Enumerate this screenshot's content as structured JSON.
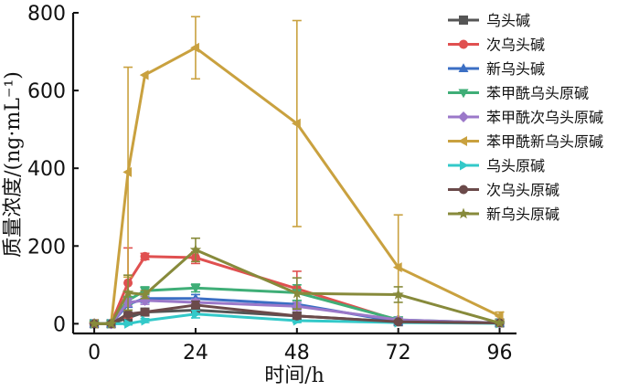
{
  "chart_data": {
    "type": "line",
    "xlabel": "时间/h",
    "ylabel": "质量浓度/(ng·mL⁻¹)",
    "xlim": [
      -5,
      100
    ],
    "ylim": [
      -25,
      800
    ],
    "xticks": [
      0,
      24,
      48,
      72,
      96
    ],
    "yticks": [
      0,
      200,
      400,
      600,
      800
    ],
    "grid": false,
    "legend_position": "top-right",
    "series": [
      {
        "name": "乌头碱",
        "marker": "square",
        "color": "#555555",
        "x": [
          0,
          4,
          8,
          12,
          24,
          48,
          72,
          96
        ],
        "y": [
          0,
          0,
          15,
          30,
          35,
          20,
          5,
          2
        ],
        "err": [
          0,
          0,
          5,
          8,
          10,
          8,
          3,
          1
        ]
      },
      {
        "name": "次乌头碱",
        "marker": "circle",
        "color": "#e05050",
        "x": [
          0,
          4,
          8,
          12,
          24,
          48,
          72,
          96
        ],
        "y": [
          0,
          0,
          105,
          173,
          170,
          90,
          8,
          2
        ],
        "err": [
          0,
          0,
          90,
          8,
          15,
          45,
          5,
          1
        ]
      },
      {
        "name": "新乌头碱",
        "marker": "triangle-up",
        "color": "#3b6fc4",
        "x": [
          0,
          4,
          8,
          12,
          24,
          48,
          72,
          96
        ],
        "y": [
          0,
          0,
          50,
          65,
          65,
          50,
          5,
          2
        ],
        "err": [
          0,
          0,
          15,
          10,
          10,
          10,
          3,
          1
        ]
      },
      {
        "name": "苯甲酰乌头原碱",
        "marker": "triangle-down",
        "color": "#3fae77",
        "x": [
          0,
          4,
          8,
          12,
          24,
          48,
          72,
          96
        ],
        "y": [
          0,
          0,
          60,
          85,
          92,
          80,
          10,
          2
        ],
        "err": [
          0,
          0,
          10,
          10,
          10,
          20,
          5,
          1
        ]
      },
      {
        "name": "苯甲酰次乌头原碱",
        "marker": "diamond",
        "color": "#9b78c9",
        "x": [
          0,
          4,
          8,
          12,
          24,
          48,
          72,
          96
        ],
        "y": [
          0,
          0,
          55,
          60,
          55,
          45,
          10,
          2
        ],
        "err": [
          0,
          0,
          10,
          10,
          8,
          10,
          5,
          1
        ]
      },
      {
        "name": "苯甲酰新乌头原碱",
        "marker": "triangle-left",
        "color": "#c9a13f",
        "x": [
          0,
          4,
          8,
          12,
          24,
          48,
          72,
          96
        ],
        "y": [
          0,
          0,
          390,
          640,
          710,
          515,
          145,
          20
        ],
        "err": [
          0,
          0,
          270,
          0,
          80,
          265,
          135,
          10
        ]
      },
      {
        "name": "乌头原碱",
        "marker": "triangle-right",
        "color": "#33c9c9",
        "x": [
          0,
          4,
          8,
          12,
          24,
          48,
          72,
          96
        ],
        "y": [
          0,
          0,
          0,
          8,
          25,
          8,
          3,
          1
        ],
        "err": [
          0,
          0,
          3,
          5,
          10,
          5,
          2,
          1
        ]
      },
      {
        "name": "次乌头原碱",
        "marker": "circle",
        "color": "#6b4a4a",
        "x": [
          0,
          4,
          8,
          12,
          24,
          48,
          72,
          96
        ],
        "y": [
          0,
          0,
          25,
          30,
          48,
          20,
          5,
          2
        ],
        "err": [
          0,
          0,
          5,
          8,
          10,
          8,
          3,
          1
        ]
      },
      {
        "name": "新乌头原碱",
        "marker": "star",
        "color": "#878a3b",
        "x": [
          0,
          4,
          8,
          12,
          24,
          48,
          72,
          96
        ],
        "y": [
          0,
          0,
          80,
          75,
          190,
          78,
          75,
          2
        ],
        "err": [
          0,
          0,
          45,
          10,
          30,
          40,
          20,
          1
        ]
      }
    ]
  }
}
